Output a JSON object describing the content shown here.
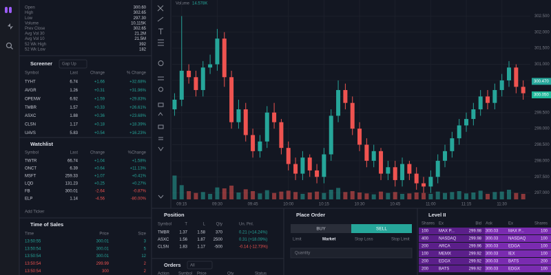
{
  "chart_data": {
    "type": "candlestick",
    "volume_title": "Volume",
    "volume_last": "14.578K",
    "x": [
      552,
      555,
      558,
      561,
      564,
      567,
      570,
      573,
      576,
      579,
      582,
      585,
      588,
      591,
      594,
      597,
      600,
      603,
      606,
      609,
      612,
      615,
      618,
      621,
      624,
      627,
      630,
      633,
      636,
      639,
      642,
      645,
      648,
      651,
      654,
      657,
      660,
      663,
      666,
      669,
      672,
      675,
      678,
      681,
      684,
      687,
      690,
      693,
      696,
      699
    ],
    "open": [
      299.6,
      299.9,
      300.8,
      300.6,
      300.2,
      300.9,
      301.0,
      301.8,
      300.6,
      299.2,
      299.6,
      298.8,
      298.3,
      298.6,
      299.5,
      299.2,
      298.4,
      297.9,
      297.6,
      298.1,
      297.7,
      297.5,
      298.2,
      299.4,
      300.2,
      299.8,
      299.0,
      298.5,
      298.0,
      298.3,
      297.6,
      297.8,
      297.4,
      297.9,
      297.6,
      297.3,
      297.2,
      297.5,
      298.0,
      298.3,
      298.7,
      299.1,
      299.3,
      299.6,
      300.0,
      299.8,
      300.2,
      300.5,
      300.9,
      300.3
    ],
    "high": [
      300.1,
      302.5,
      301.0,
      300.8,
      301.1,
      301.3,
      302.1,
      302.0,
      300.8,
      299.9,
      299.8,
      299.0,
      298.8,
      299.7,
      299.8,
      299.3,
      298.6,
      298.1,
      298.3,
      298.2,
      297.9,
      298.4,
      299.6,
      300.5,
      300.4,
      300.0,
      299.2,
      298.7,
      298.5,
      298.4,
      298.0,
      298.0,
      298.1,
      298.0,
      297.8,
      297.5,
      297.7,
      298.2,
      298.5,
      298.9,
      299.3,
      299.5,
      299.8,
      300.2,
      300.2,
      300.4,
      300.7,
      301.1,
      301.0,
      300.5
    ],
    "low": [
      299.4,
      299.7,
      300.4,
      300.0,
      300.0,
      300.7,
      300.8,
      300.3,
      299.0,
      299.0,
      298.6,
      298.1,
      298.1,
      298.4,
      299.0,
      298.2,
      297.7,
      297.4,
      297.4,
      297.5,
      297.3,
      297.3,
      298.0,
      299.2,
      299.6,
      298.8,
      298.3,
      297.8,
      297.8,
      297.4,
      297.4,
      297.2,
      297.2,
      297.4,
      297.1,
      297.0,
      297.0,
      297.3,
      297.8,
      298.1,
      298.5,
      298.9,
      299.1,
      299.4,
      299.6,
      299.6,
      300.0,
      300.3,
      300.1,
      299.9
    ],
    "close": [
      299.9,
      300.8,
      300.6,
      300.2,
      300.9,
      301.0,
      301.8,
      300.6,
      299.2,
      299.6,
      298.8,
      298.3,
      298.6,
      299.5,
      299.2,
      298.4,
      297.9,
      297.6,
      298.1,
      297.7,
      297.5,
      298.2,
      299.4,
      300.2,
      299.8,
      299.0,
      298.5,
      298.0,
      298.3,
      297.6,
      297.8,
      297.4,
      297.9,
      297.6,
      297.3,
      297.2,
      297.5,
      298.0,
      298.3,
      298.7,
      299.1,
      299.3,
      299.6,
      300.0,
      299.8,
      300.2,
      300.5,
      300.9,
      300.3,
      300.1
    ],
    "volume": [
      520,
      310,
      180,
      140,
      160,
      120,
      260,
      240,
      300,
      150,
      220,
      180,
      130,
      200,
      140,
      170,
      190,
      160,
      120,
      150,
      170,
      140,
      210,
      250,
      160,
      180,
      150,
      130,
      110,
      170,
      140,
      160,
      120,
      130,
      150,
      140,
      120,
      170,
      140,
      160,
      180,
      130,
      150,
      190,
      120,
      160,
      170,
      210,
      140,
      120
    ],
    "vlim": [
      0,
      600
    ],
    "up_color": "#26a69a",
    "down_color": "#ef5350",
    "xlim": [
      551,
      702
    ],
    "xticks": [
      {
        "value": 555,
        "label": "09:15"
      },
      {
        "value": 570,
        "label": "09:30"
      },
      {
        "value": 585,
        "label": "09:45"
      },
      {
        "value": 600,
        "label": "10:00"
      },
      {
        "value": 615,
        "label": "10:15"
      },
      {
        "value": 630,
        "label": "10:30"
      },
      {
        "value": 645,
        "label": "10:45"
      },
      {
        "value": 660,
        "label": "11:00"
      },
      {
        "value": 675,
        "label": "11:15"
      },
      {
        "value": 690,
        "label": "11:30"
      }
    ],
    "ylim": [
      296.8,
      303.0
    ],
    "yticks": [
      {
        "value": 297,
        "label": "297.000"
      },
      {
        "value": 297.5,
        "label": "297.500"
      },
      {
        "value": 298,
        "label": "298.000"
      },
      {
        "value": 298.5,
        "label": "298.500"
      },
      {
        "value": 299,
        "label": "299.000"
      },
      {
        "value": 299.5,
        "label": "299.500"
      },
      {
        "value": 300,
        "label": "300.000"
      },
      {
        "value": 300.5,
        "label": "300.500"
      },
      {
        "value": 301,
        "label": "301.000"
      },
      {
        "value": 301.5,
        "label": "301.500"
      },
      {
        "value": 302,
        "label": "302.000"
      },
      {
        "value": 302.5,
        "label": "302.500"
      }
    ],
    "price_labels": [
      {
        "value": 300.47,
        "label": "300.470",
        "color": "#26a69a"
      },
      {
        "value": 300.05,
        "label": "300.050",
        "color": "#1fb89a"
      }
    ],
    "grid": true
  },
  "stats": {
    "rows": [
      [
        "Open",
        "300.60"
      ],
      [
        "High",
        "302.65"
      ],
      [
        "Low",
        "297.30"
      ],
      [
        "Volume",
        "10,115K"
      ],
      [
        "Prev Close",
        "302.65"
      ],
      [
        "Avg Vol 30",
        "21.2M"
      ],
      [
        "Avg Vol 10",
        "21.5M"
      ],
      [
        "52 Wk High",
        "392"
      ],
      [
        "52 Wk Low",
        "182"
      ]
    ]
  },
  "screener": {
    "title": "Screener",
    "filter": "Gap Up",
    "columns": [
      "Symbol",
      "Last",
      "Change",
      "% Change"
    ],
    "rows": [
      [
        "TYHT",
        "6.74",
        "+1.66",
        "+32.68%"
      ],
      [
        "AVGR",
        "1.26",
        "+0.31",
        "+31.96%"
      ],
      [
        "OPENW",
        "6.92",
        "+1.59",
        "+29.83%"
      ],
      [
        "TMBR",
        "1.57",
        "+0.33",
        "+26.61%"
      ],
      [
        "ASXC",
        "1.88",
        "+0.36",
        "+23.68%"
      ],
      [
        "CLSN",
        "1.17",
        "+0.18",
        "+18.39%"
      ],
      [
        "UAVS",
        "5.83",
        "+0.54",
        "+16.23%"
      ]
    ]
  },
  "watchlist": {
    "title": "Watchlist",
    "columns": [
      "Symbol",
      "Last",
      "Change",
      "%Change"
    ],
    "rows": [
      [
        "TWTR",
        "66.74",
        "+1.04",
        "+1.58%"
      ],
      [
        "ONCT",
        "6.39",
        "+0.64",
        "+11.13%"
      ],
      [
        "MSFT",
        "259.33",
        "+1.07",
        "+0.41%"
      ],
      [
        "LQD",
        "131.23",
        "+0.25",
        "+0.27%"
      ],
      [
        "FB",
        "300.01",
        "-2.64",
        "-0.87%"
      ],
      [
        "ELP",
        "1.14",
        "-4.56",
        "-80.00%"
      ]
    ],
    "add": "Add Ticker"
  },
  "time_of_sales": {
    "title": "Time of Sales",
    "columns": [
      "Time",
      "Price",
      "Size"
    ],
    "rows": [
      [
        "13:50:55",
        "300.01",
        "3"
      ],
      [
        "13:50:54",
        "300.01",
        "5"
      ],
      [
        "13:50:54",
        "300.01",
        "12"
      ],
      [
        "13:50:54",
        "299.99",
        "2"
      ],
      [
        "13:50:54",
        "300",
        "2"
      ]
    ],
    "colors": [
      "#26a69a",
      "#26a69a",
      "#26a69a",
      "#ef5350",
      "#ef5350"
    ]
  },
  "position": {
    "title": "Position",
    "columns": [
      "Symbol",
      "T",
      "L",
      "Qty",
      "Un. Pnl."
    ],
    "rows": [
      [
        "TMBR",
        "1.37",
        "1.58",
        "370",
        "0.21 (+14.24%)"
      ],
      [
        "ASXC",
        "1.56",
        "1.87",
        "2500",
        "0.31 (+18.09%)"
      ],
      [
        "CLSN",
        "1.83",
        "1.17",
        "-500",
        "-0.14 (-12.73%)"
      ]
    ]
  },
  "orders": {
    "title": "Orders",
    "filter": "All",
    "columns": [
      "Action",
      "Symbol",
      "Price",
      "Qty",
      "Status"
    ]
  },
  "place_order": {
    "title": "Place Order",
    "buy": "BUY",
    "sell": "SELL",
    "tabs": [
      "Limit",
      "Market",
      "Stop Loss",
      "Stop Limit"
    ],
    "active_tab": 1,
    "quantity_placeholder": "Quantity"
  },
  "level2": {
    "title": "Level II",
    "columns": [
      "Shares",
      "Ex",
      "Bid",
      "Ask",
      "Ex",
      "Shares"
    ],
    "rows": [
      [
        "100",
        "MAX P...",
        "299.98",
        "300.03",
        "MAX P...",
        "100"
      ],
      [
        "400",
        "NASDAQ",
        "299.98",
        "300.03",
        "NASDAQ",
        "100"
      ],
      [
        "200",
        "ARCA",
        "299.96",
        "300.03",
        "EDGA",
        "100"
      ],
      [
        "100",
        "MEMX",
        "299.92",
        "300.03",
        "IEX",
        "100"
      ],
      [
        "200",
        "EDGX",
        "299.92",
        "300.03",
        "BATS",
        "200"
      ],
      [
        "200",
        "BATS",
        "299.92",
        "300.03",
        "EDGX",
        "100"
      ]
    ]
  }
}
